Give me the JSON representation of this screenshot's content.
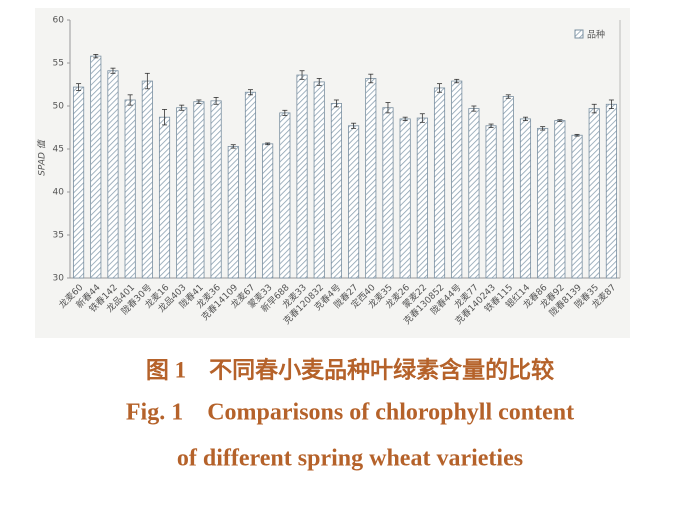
{
  "chart_data": {
    "type": "bar",
    "y_label": "SPAD 值",
    "categories": [
      "龙麦60",
      "新春44",
      "铁春142",
      "龙品401",
      "陇春30号",
      "龙麦16",
      "龙品403",
      "陇春41",
      "龙麦36",
      "克春14109",
      "龙麦67",
      "蒙麦33",
      "新早688",
      "龙麦33",
      "克春120832",
      "克春4号",
      "陇春27",
      "定西40",
      "龙麦35",
      "龙麦26",
      "蒙麦22",
      "克春130852",
      "陇春44号",
      "龙麦77",
      "克春140243",
      "铁春115",
      "银红14",
      "龙春86",
      "龙春92",
      "陇春8139",
      "陇春35",
      "龙麦87"
    ],
    "series": [
      {
        "name": "品种",
        "color": "#7a8fa0",
        "values": [
          52.2,
          55.8,
          54.1,
          50.7,
          52.9,
          48.7,
          49.8,
          50.5,
          50.6,
          45.3,
          51.6,
          45.6,
          49.2,
          53.6,
          52.8,
          50.3,
          47.7,
          53.2,
          49.8,
          48.5,
          48.6,
          52.1,
          52.9,
          49.7,
          47.7,
          51.1,
          48.5,
          47.4,
          48.3,
          46.6,
          49.7,
          50.2
        ],
        "errors": [
          0.4,
          0.2,
          0.3,
          0.6,
          0.9,
          0.9,
          0.3,
          0.2,
          0.4,
          0.2,
          0.3,
          0.1,
          0.3,
          0.5,
          0.4,
          0.4,
          0.3,
          0.5,
          0.6,
          0.2,
          0.5,
          0.5,
          0.2,
          0.3,
          0.2,
          0.2,
          0.2,
          0.2,
          0.1,
          0.1,
          0.5,
          0.5
        ]
      }
    ],
    "ylim": [
      30,
      60
    ],
    "yticks": [
      30,
      35,
      40,
      45,
      50,
      55,
      60
    ],
    "legend": "top-right",
    "caption": [
      "图 1　不同春小麦品种叶绿素含量的比较",
      "Fig. 1　Comparisons of chlorophyll content",
      "of different spring wheat varieties"
    ]
  }
}
